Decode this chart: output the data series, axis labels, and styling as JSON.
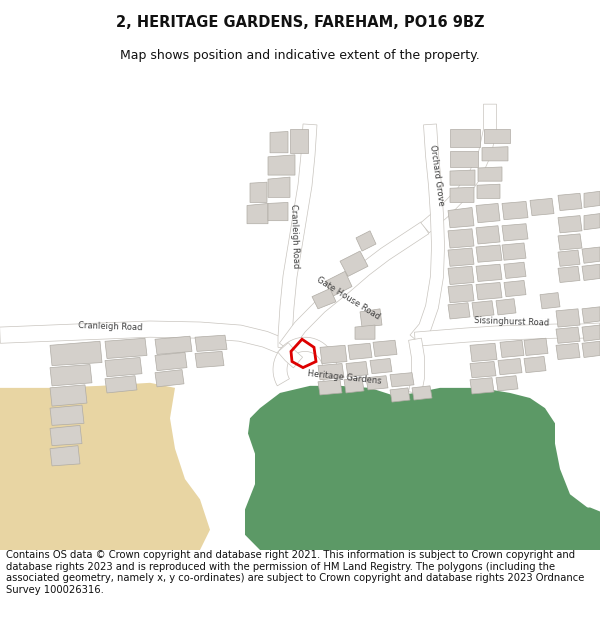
{
  "title_line1": "2, HERITAGE GARDENS, FAREHAM, PO16 9BZ",
  "title_line2": "Map shows position and indicative extent of the property.",
  "footer_text": "Contains OS data © Crown copyright and database right 2021. This information is subject to Crown copyright and database rights 2023 and is reproduced with the permission of HM Land Registry. The polygons (including the associated geometry, namely x, y co-ordinates) are subject to Crown copyright and database rights 2023 Ordnance Survey 100026316.",
  "title_fontsize": 10.5,
  "subtitle_fontsize": 9,
  "footer_fontsize": 7.2,
  "map_bg_color": "#f5f3ef",
  "building_color": "#d4d0cb",
  "building_edge_color": "#b0aca5",
  "road_color": "#ffffff",
  "road_edge_color": "#c8c4be",
  "green_color": "#5c9966",
  "sand_color": "#e8d5a3",
  "red_color": "#dd0000",
  "road_label_color": "#404040",
  "road_label_fontsize": 6.0
}
